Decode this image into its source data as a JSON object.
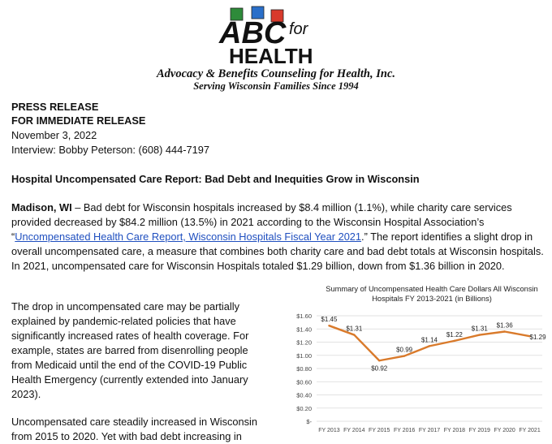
{
  "header": {
    "logo": {
      "text_abc": "ABC",
      "text_for": "for",
      "text_health": "HEALTH",
      "block_colors": [
        "#2e8b3a",
        "#2a6fc9",
        "#d83a2c"
      ]
    },
    "org_name": "Advocacy & Benefits Counseling for Health, Inc.",
    "tagline": "Serving Wisconsin Families Since 1994"
  },
  "release": {
    "line1": "PRESS RELEASE",
    "line2": "FOR IMMEDIATE RELEASE",
    "date": "November 3, 2022",
    "contact": "Interview: Bobby Peterson: (608) 444-7197"
  },
  "headline": "Hospital Uncompensated Care Report: Bad Debt and Inequities Grow in Wisconsin",
  "body": {
    "dateline": "Madison, WI",
    "p1_part1": " – Bad debt for Wisconsin hospitals increased by $8.4 million (1.1%), while charity care services provided decreased by $84.2 million (13.5%) in 2021 according to the Wisconsin Hospital Association’s “",
    "p1_link": "Uncompensated Health Care Report, Wisconsin Hospitals Fiscal Year 2021",
    "p1_part2": ".” The report identifies a slight drop in overall uncompensated care, a measure that combines both charity care and bad debt totals at Wisconsin hospitals. In 2021, uncompensated care for Wisconsin Hospitals totaled $1.29 billion, down from $1.36 billion in 2020.",
    "p2": "The drop in uncompensated care may be partially explained by pandemic-related policies that have significantly increased rates of health coverage. For example, states are barred from disenrolling people from Medicaid until the end of the COVID-19 Public Health Emergency (currently extended into January 2023).",
    "p3": "Uncompensated care steadily increased in Wisconsin from 2015 to 2020. Yet with bad debt increasing in"
  },
  "chart_data": {
    "type": "line",
    "title": "Summary of Uncompensated Health Care Dollars All Wisconsin Hospitals FY 2013-2021 (in Billions)",
    "categories": [
      "FY 2013",
      "FY 2014",
      "FY 2015",
      "FY 2016",
      "FY 2017",
      "FY 2018",
      "FY 2019",
      "FY 2020",
      "FY 2021"
    ],
    "values": [
      1.45,
      1.31,
      0.92,
      0.99,
      1.14,
      1.22,
      1.31,
      1.36,
      1.29
    ],
    "data_labels": [
      "$1.45",
      "$1.31",
      "$0.92",
      "$0.99",
      "$1.14",
      "$1.22",
      "$1.31",
      "$1.36",
      "$1.29"
    ],
    "y_ticks": [
      {
        "value": 1.6,
        "label": "$1.60"
      },
      {
        "value": 1.4,
        "label": "$1.40"
      },
      {
        "value": 1.2,
        "label": "$1.20"
      },
      {
        "value": 1.0,
        "label": "$1.00"
      },
      {
        "value": 0.8,
        "label": "$0.80"
      },
      {
        "value": 0.6,
        "label": "$0.60"
      },
      {
        "value": 0.4,
        "label": "$0.40"
      },
      {
        "value": 0.2,
        "label": "$0.20"
      },
      {
        "value": 0.0,
        "label": "$-"
      }
    ],
    "ylim": [
      0,
      1.6
    ],
    "grid": true,
    "line_color": "#d97a2b",
    "xlabel": "",
    "ylabel": ""
  }
}
